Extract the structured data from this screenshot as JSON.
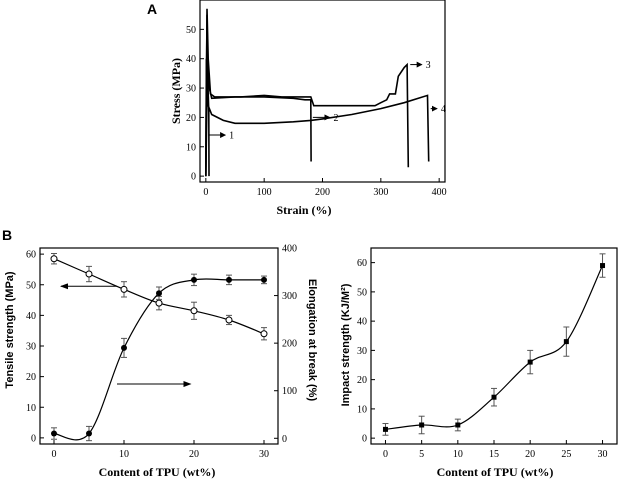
{
  "panels": {
    "a": "A",
    "b": "B"
  },
  "chart_data": [
    {
      "id": "A",
      "type": "line",
      "title": "",
      "xlabel": "Strain (%)",
      "ylabel": "Stress (MPa)",
      "xlim": [
        -10,
        410
      ],
      "ylim": [
        -2,
        60
      ],
      "xticks": [
        0,
        100,
        200,
        300,
        400
      ],
      "yticks": [
        0,
        10,
        20,
        30,
        40,
        50
      ],
      "series": [
        {
          "name": "1",
          "points": [
            [
              0,
              0
            ],
            [
              1,
              30
            ],
            [
              2,
              55
            ],
            [
              3,
              40
            ],
            [
              4,
              28
            ],
            [
              5,
              22
            ],
            [
              5.5,
              0
            ]
          ]
        },
        {
          "name": "2",
          "points": [
            [
              0,
              0
            ],
            [
              1,
              40
            ],
            [
              2,
              30
            ],
            [
              4,
              24
            ],
            [
              10,
              21
            ],
            [
              30,
              19
            ],
            [
              50,
              18
            ],
            [
              100,
              18
            ],
            [
              150,
              18.5
            ],
            [
              180,
              19
            ],
            [
              200,
              19.5
            ],
            [
              250,
              21
            ],
            [
              300,
              23
            ],
            [
              340,
              25
            ],
            [
              380,
              27.5
            ],
            [
              382,
              5
            ]
          ]
        },
        {
          "name": "3",
          "points": [
            [
              0,
              0
            ],
            [
              2,
              57
            ],
            [
              4,
              40
            ],
            [
              8,
              28
            ],
            [
              15,
              27
            ],
            [
              20,
              27
            ],
            [
              40,
              27
            ],
            [
              60,
              27
            ],
            [
              100,
              27.5
            ],
            [
              130,
              27
            ],
            [
              160,
              27
            ],
            [
              180,
              27
            ],
            [
              185,
              24
            ],
            [
              200,
              24
            ],
            [
              250,
              24
            ],
            [
              290,
              24
            ],
            [
              300,
              25
            ],
            [
              310,
              26
            ],
            [
              315,
              28
            ],
            [
              325,
              28
            ],
            [
              330,
              34
            ],
            [
              340,
              37
            ],
            [
              345,
              38
            ],
            [
              347,
              3
            ]
          ]
        },
        {
          "name": "4",
          "points": [
            [
              0,
              0
            ],
            [
              3,
              40
            ],
            [
              6,
              30
            ],
            [
              10,
              26.5
            ],
            [
              50,
              27
            ],
            [
              100,
              27
            ],
            [
              150,
              26.5
            ],
            [
              170,
              26
            ],
            [
              180,
              26
            ],
            [
              180.5,
              5
            ]
          ]
        }
      ],
      "annotations": [
        {
          "label": "1",
          "series": "1"
        },
        {
          "label": "2",
          "series": "2"
        },
        {
          "label": "3",
          "series": "3"
        },
        {
          "label": "4",
          "series": "4"
        }
      ]
    },
    {
      "id": "B-left",
      "type": "line",
      "xlabel": "Content of TPU (wt%)",
      "ylabel": "Tensile strength (MPa)",
      "ylabel_right": "Elongation at break (%)",
      "xlim": [
        -2,
        32
      ],
      "ylim": [
        -2,
        62
      ],
      "ylim_right": [
        -12,
        400
      ],
      "xticks": [
        0,
        10,
        20,
        30
      ],
      "yticks": [
        0,
        10,
        20,
        30,
        40,
        50,
        60
      ],
      "yticks_right": [
        0,
        100,
        200,
        300,
        400
      ],
      "series": [
        {
          "name": "Tensile strength",
          "axis": "left",
          "marker": "open-circle",
          "x": [
            0,
            5,
            10,
            15,
            20,
            25,
            30
          ],
          "values": [
            58.5,
            53.5,
            48.5,
            44,
            41.5,
            38.5,
            34
          ],
          "errors": [
            1.7,
            2.5,
            2.5,
            2.2,
            2.8,
            1.5,
            2
          ]
        },
        {
          "name": "Elongation at break",
          "axis": "right",
          "marker": "filled-circle",
          "x": [
            0,
            5,
            10,
            15,
            20,
            25,
            30
          ],
          "values": [
            10,
            10,
            190,
            305,
            333,
            333,
            333
          ],
          "errors": [
            12,
            15,
            20,
            13,
            12,
            10,
            8
          ]
        }
      ]
    },
    {
      "id": "B-right",
      "type": "line",
      "xlabel": "Content of TPU (wt%)",
      "ylabel": "Impact strength (KJ/M²)",
      "xlim": [
        -2,
        32
      ],
      "ylim": [
        -2,
        65
      ],
      "xticks": [
        0,
        5,
        10,
        15,
        20,
        25,
        30
      ],
      "yticks": [
        0,
        10,
        20,
        30,
        40,
        50,
        60
      ],
      "series": [
        {
          "name": "Impact strength",
          "marker": "filled-square",
          "x": [
            0,
            5,
            10,
            15,
            20,
            25,
            30
          ],
          "values": [
            3,
            4.5,
            4.5,
            14,
            26,
            33,
            59
          ],
          "errors": [
            2,
            3,
            2,
            3,
            4,
            5,
            4
          ]
        }
      ]
    }
  ]
}
